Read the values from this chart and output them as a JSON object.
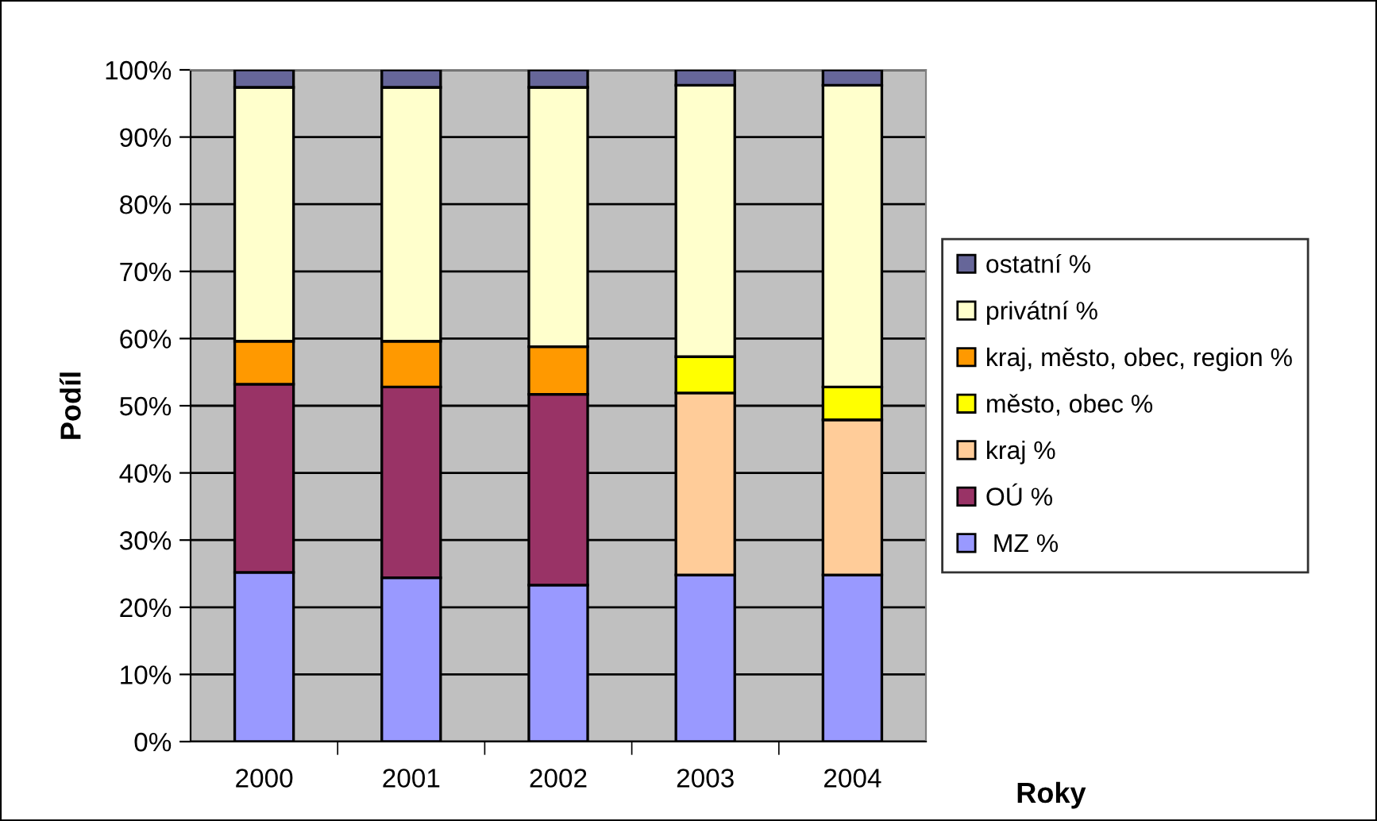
{
  "chart_data": {
    "type": "bar",
    "stacked": true,
    "xlabel": "Roky",
    "ylabel": "Podíl",
    "categories": [
      "2000",
      "2001",
      "2002",
      "2003",
      "2004"
    ],
    "series": [
      {
        "name": " MZ %",
        "color": "#9999ff",
        "values": [
          25.2,
          24.4,
          23.3,
          24.8,
          24.8
        ]
      },
      {
        "name": "OÚ %",
        "color": "#993366",
        "values": [
          28.0,
          28.4,
          28.4,
          null,
          null
        ]
      },
      {
        "name": "kraj %",
        "color": "#ffcc99",
        "values": [
          null,
          null,
          null,
          27.1,
          23.1
        ]
      },
      {
        "name": "město, obec %",
        "color": "#ffff00",
        "values": [
          null,
          null,
          null,
          5.4,
          4.9
        ]
      },
      {
        "name": "kraj, město, obec, region %",
        "color": "#ff9900",
        "values": [
          6.4,
          6.8,
          7.1,
          null,
          null
        ]
      },
      {
        "name": "privátní %",
        "color": "#ffffcc",
        "values": [
          37.8,
          37.8,
          38.6,
          40.4,
          44.9
        ]
      },
      {
        "name": "ostatní %",
        "color": "#666699",
        "values": [
          2.6,
          2.6,
          2.6,
          2.3,
          2.3
        ]
      }
    ],
    "ylim": [
      0,
      100
    ],
    "yticks": [
      {
        "value": 0,
        "label": "0%"
      },
      {
        "value": 10,
        "label": "10%"
      },
      {
        "value": 20,
        "label": "20%"
      },
      {
        "value": 30,
        "label": "30%"
      },
      {
        "value": 40,
        "label": "40%"
      },
      {
        "value": 50,
        "label": "50%"
      },
      {
        "value": 60,
        "label": "60%"
      },
      {
        "value": 70,
        "label": "70%"
      },
      {
        "value": 80,
        "label": "80%"
      },
      {
        "value": 90,
        "label": "90%"
      },
      {
        "value": 100,
        "label": "100%"
      }
    ],
    "grid": "y",
    "legend": "right"
  }
}
